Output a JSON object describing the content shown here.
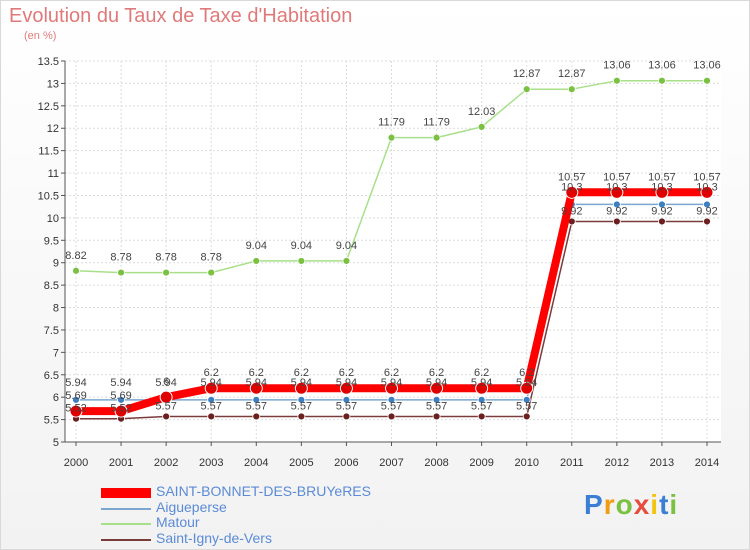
{
  "chart_data": {
    "type": "line",
    "title": "Evolution du Taux de Taxe d'Habitation",
    "unit_label": "(en %)",
    "x": [
      "2000",
      "2001",
      "2002",
      "2003",
      "2004",
      "2005",
      "2006",
      "2007",
      "2008",
      "2009",
      "2010",
      "2011",
      "2012",
      "2013",
      "2014"
    ],
    "ylim": [
      5,
      13.5
    ],
    "yticks": [
      "5",
      "5.5",
      "6",
      "6.5",
      "7",
      "7.5",
      "8",
      "8.5",
      "9",
      "9.5",
      "10",
      "10.5",
      "11",
      "11.5",
      "12",
      "12.5",
      "13",
      "13.5"
    ],
    "grid": true,
    "legend_position": "bottom-left",
    "series": [
      {
        "name": "SAINT-BONNET-DES-BRUYeRES",
        "color": "#ff0000",
        "marker": "#e00000",
        "values": [
          5.69,
          5.69,
          6,
          6.2,
          6.2,
          6.2,
          6.2,
          6.2,
          6.2,
          6.2,
          6.2,
          10.57,
          10.57,
          10.57,
          10.57
        ],
        "labels": [
          "5.69",
          "5.69",
          "6",
          "6.2",
          "6.2",
          "6.2",
          "6.2",
          "6.2",
          "6.2",
          "6.2",
          "6.2",
          "10.57",
          "10.57",
          "10.57",
          "10.57"
        ]
      },
      {
        "name": "Aigueperse",
        "color": "#7ba6cf",
        "marker": "#3e7fbf",
        "values": [
          5.94,
          5.94,
          5.94,
          5.94,
          5.94,
          5.94,
          5.94,
          5.94,
          5.94,
          5.94,
          5.94,
          10.3,
          10.3,
          10.3,
          10.3
        ],
        "labels": [
          "5.94",
          "5.94",
          "5.94",
          "5.94",
          "5.94",
          "5.94",
          "5.94",
          "5.94",
          "5.94",
          "5.94",
          "5.94",
          "10.3",
          "10.3",
          "10.3",
          "10.3"
        ]
      },
      {
        "name": "Matour",
        "color": "#a8e08a",
        "marker": "#7ac142",
        "values": [
          8.82,
          8.78,
          8.78,
          8.78,
          9.04,
          9.04,
          9.04,
          11.79,
          11.79,
          12.03,
          12.87,
          12.87,
          13.06,
          13.06,
          13.06
        ],
        "labels": [
          "8.82",
          "8.78",
          "8.78",
          "8.78",
          "9.04",
          "9.04",
          "9.04",
          "11.79",
          "11.79",
          "12.03",
          "12.87",
          "12.87",
          "13.06",
          "13.06",
          "13.06"
        ]
      },
      {
        "name": "Saint-Igny-de-Vers",
        "color": "#7a3b3b",
        "marker": "#6b1f1f",
        "values": [
          5.52,
          5.52,
          5.57,
          5.57,
          5.57,
          5.57,
          5.57,
          5.57,
          5.57,
          5.57,
          5.57,
          9.92,
          9.92,
          9.92,
          9.92
        ],
        "labels": [
          "5.52",
          "5.52",
          "5.57",
          "5.57",
          "5.57",
          "5.57",
          "5.57",
          "5.57",
          "5.57",
          "5.57",
          "5.57",
          "9.92",
          "9.92",
          "9.92",
          "9.92"
        ]
      }
    ]
  },
  "logo": {
    "text": "Proxiti",
    "letters": [
      "P",
      "r",
      "o",
      "x",
      "i",
      "t",
      "i"
    ],
    "colors": [
      "#3a7fd5",
      "#f39c12",
      "#7ac142",
      "#e74c3c",
      "#f1c40f",
      "#3a7fd5",
      "#7ac142"
    ]
  }
}
